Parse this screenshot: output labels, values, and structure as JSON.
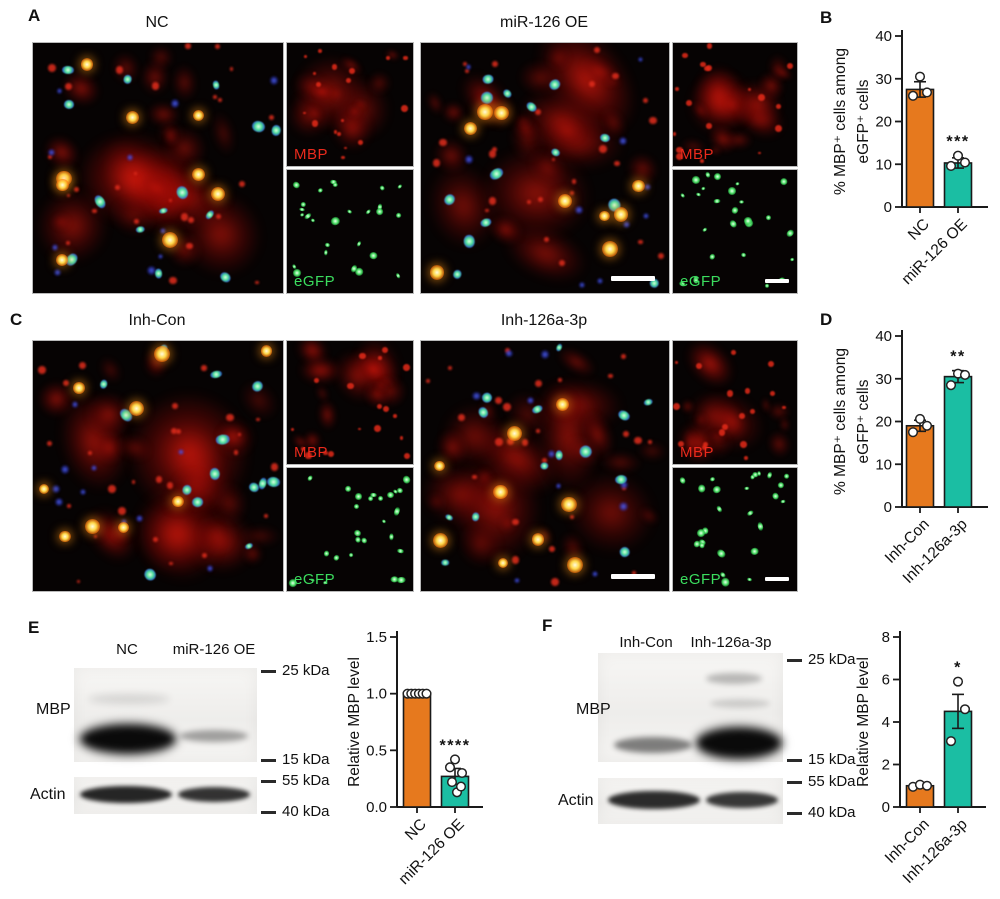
{
  "colors": {
    "bar_orange": "#E6791E",
    "bar_teal": "#1BBEA3",
    "mbp_label": "#EA2A1C",
    "egfp_label": "#3BDC5E",
    "axis": "#1a1a1a"
  },
  "panels": {
    "A": {
      "letter": "A",
      "groups": [
        {
          "title": "NC",
          "mbp_label": "MBP",
          "egfp_label": "eGFP",
          "has_scalebar": false
        },
        {
          "title": "miR-126 OE",
          "mbp_label": "MBP",
          "egfp_label": "eGFP",
          "has_scalebar": true
        }
      ]
    },
    "B": {
      "letter": "B"
    },
    "C": {
      "letter": "C",
      "groups": [
        {
          "title": "Inh-Con",
          "mbp_label": "MBP",
          "egfp_label": "eGFP",
          "has_scalebar": false
        },
        {
          "title": "Inh-126a-3p",
          "mbp_label": "MBP",
          "egfp_label": "eGFP",
          "has_scalebar": true
        }
      ]
    },
    "D": {
      "letter": "D"
    },
    "E": {
      "letter": "E",
      "blot": {
        "lane_labels": [
          "NC",
          "miR-126 OE"
        ],
        "target_labels": [
          "MBP",
          "Actin"
        ],
        "mw_markers": [
          "25 kDa",
          "15 kDa",
          "55 kDa",
          "40 kDa"
        ]
      }
    },
    "F": {
      "letter": "F",
      "blot": {
        "lane_labels": [
          "Inh-Con",
          "Inh-126a-3p"
        ],
        "target_labels": [
          "MBP",
          "Actin"
        ],
        "mw_markers": [
          "25 kDa",
          "15 kDa",
          "55 kDa",
          "40 kDa"
        ]
      }
    }
  },
  "chart_data": [
    {
      "id": "B",
      "type": "bar",
      "title": "",
      "categories": [
        "NC",
        "miR-126 OE"
      ],
      "values": [
        27.5,
        10.3
      ],
      "errors": [
        1.8,
        1.2
      ],
      "points": [
        [
          26,
          30.5,
          26.8
        ],
        [
          9.6,
          12,
          10.4
        ]
      ],
      "ylabel_lines": [
        "% MBP⁺ cells among",
        "eGFP⁺ cells"
      ],
      "ylim": [
        0,
        40
      ],
      "yticks": [
        "0",
        "10",
        "20",
        "30",
        "40"
      ],
      "significance": "***",
      "sig_index": 1,
      "bar_colors": [
        "bar_orange",
        "bar_teal"
      ],
      "grid": false,
      "legend": null
    },
    {
      "id": "D",
      "type": "bar",
      "title": "",
      "categories": [
        "Inh-Con",
        "Inh-126a-3p"
      ],
      "values": [
        19,
        30.5
      ],
      "errors": [
        1.3,
        1.4
      ],
      "points": [
        [
          17.5,
          20.6,
          19
        ],
        [
          28.5,
          31.2,
          30.9
        ]
      ],
      "ylabel_lines": [
        "% MBP⁺ cells among",
        "eGFP⁺ cells"
      ],
      "ylim": [
        0,
        40
      ],
      "yticks": [
        "0",
        "10",
        "20",
        "30",
        "40"
      ],
      "significance": "**",
      "sig_index": 1,
      "bar_colors": [
        "bar_orange",
        "bar_teal"
      ],
      "grid": false,
      "legend": null
    },
    {
      "id": "E",
      "type": "bar",
      "title": "",
      "categories": [
        "NC",
        "miR-126 OE"
      ],
      "values": [
        1.0,
        0.27
      ],
      "errors": [
        0,
        0.07
      ],
      "points": [
        [
          1,
          1,
          1,
          1,
          1,
          1
        ],
        [
          0.13,
          0.18,
          0.22,
          0.3,
          0.35,
          0.42
        ]
      ],
      "ylabel_lines": [
        "Relative MBP level"
      ],
      "ylim": [
        0,
        1.5
      ],
      "yticks": [
        "0.0",
        "0.5",
        "1.0",
        "1.5"
      ],
      "significance": "****",
      "sig_index": 1,
      "bar_colors": [
        "bar_orange",
        "bar_teal"
      ],
      "grid": false,
      "legend": null
    },
    {
      "id": "F",
      "type": "bar",
      "title": "",
      "categories": [
        "Inh-Con",
        "Inh-126a-3p"
      ],
      "values": [
        1.0,
        4.5
      ],
      "errors": [
        0.05,
        0.8
      ],
      "points": [
        [
          0.95,
          1.05,
          1.0
        ],
        [
          3.1,
          5.9,
          4.6
        ]
      ],
      "ylabel_lines": [
        "Relative MBP level"
      ],
      "ylim": [
        0,
        8
      ],
      "yticks": [
        "0",
        "2",
        "4",
        "6",
        "8"
      ],
      "significance": "*",
      "sig_index": 1,
      "bar_colors": [
        "bar_orange",
        "bar_teal"
      ],
      "grid": false,
      "legend": null
    }
  ]
}
